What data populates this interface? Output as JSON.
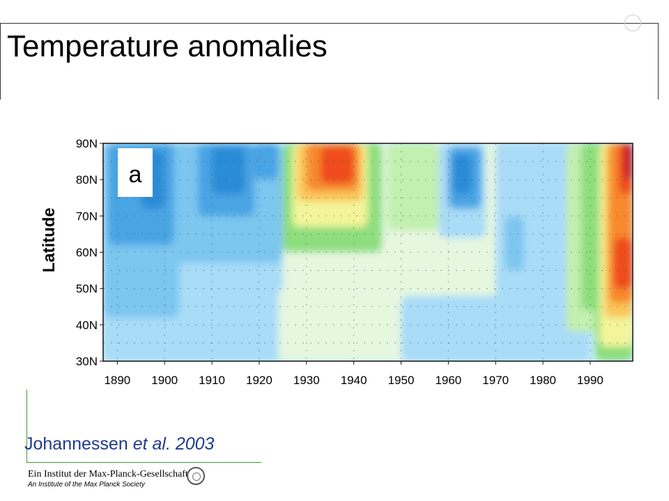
{
  "slide": {
    "title": "Temperature anomalies",
    "citation_author": "Johannessen",
    "citation_etal": "et al.",
    "citation_year": "2003",
    "footer_de": "Ein Institut der Max-Planck-Gesellschaft",
    "footer_en": "An Institute of the Max Planck Society"
  },
  "chart_data": {
    "type": "heatmap",
    "panel_label": "a",
    "ylabel": "Latitude",
    "xlabel": "",
    "x_ticks": [
      "1890",
      "1900",
      "1910",
      "1920",
      "1930",
      "1940",
      "1950",
      "1960",
      "1970",
      "1980",
      "1990"
    ],
    "y_ticks": [
      "90N",
      "80N",
      "70N",
      "60N",
      "50N",
      "40N",
      "30N"
    ],
    "xlim": [
      1887,
      1999
    ],
    "ylim": [
      30,
      90
    ],
    "colors": [
      "#2b8bd6",
      "#4aa4e4",
      "#7cc6f0",
      "#a9dcf7",
      "#ccefff",
      "#e6f7e0",
      "#c2f0b0",
      "#8ede7f",
      "#f3f59a",
      "#fbc65a",
      "#f7892e",
      "#ef4b1a",
      "#c8232a"
    ],
    "grid": true,
    "legend": "none"
  }
}
